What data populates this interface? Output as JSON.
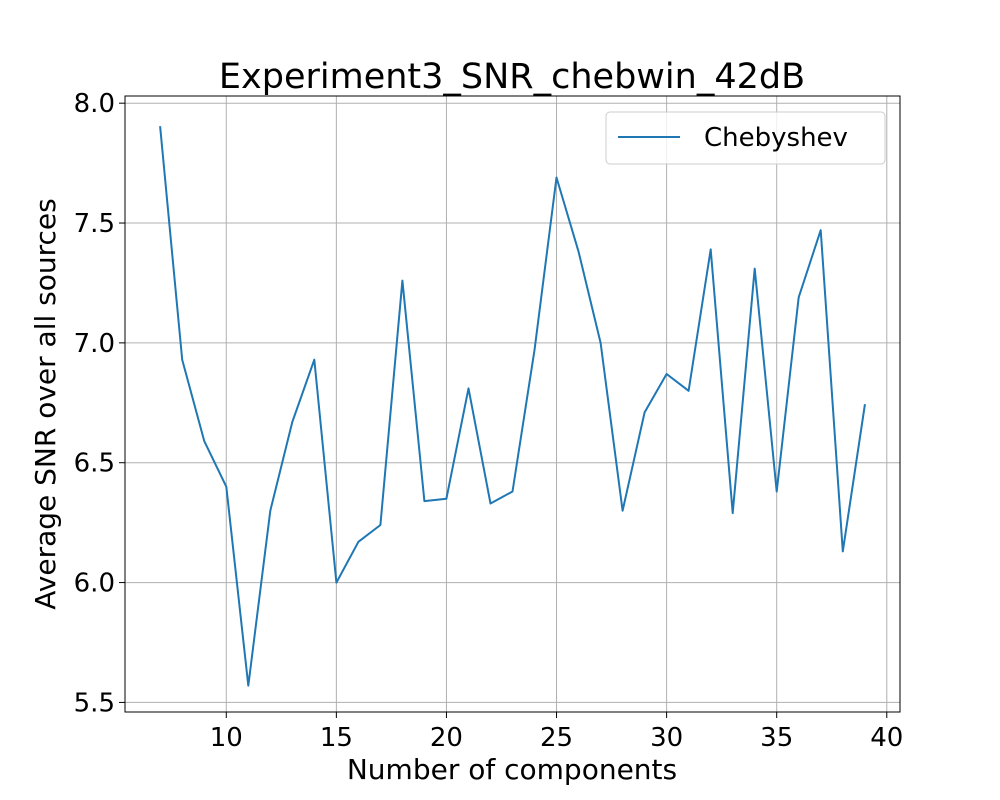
{
  "chart_data": {
    "type": "line",
    "title": "Experiment3_SNR_chebwin_42dB",
    "xlabel": "Number of components",
    "ylabel": "Average SNR over all sources",
    "xlim": [
      5.4,
      40.6
    ],
    "ylim": [
      5.46,
      8.03
    ],
    "xticks": [
      10,
      15,
      20,
      25,
      30,
      35,
      40
    ],
    "yticks": [
      5.5,
      6.0,
      6.5,
      7.0,
      7.5,
      8.0
    ],
    "xtick_labels": [
      "10",
      "15",
      "20",
      "25",
      "30",
      "35",
      "40"
    ],
    "ytick_labels": [
      "5.5",
      "6.0",
      "6.5",
      "7.0",
      "7.5",
      "8.0"
    ],
    "grid": true,
    "legend_position": "top-right",
    "series": [
      {
        "name": "Chebyshev",
        "color": "#1f77b4",
        "x": [
          7,
          8,
          9,
          10,
          11,
          12,
          13,
          14,
          15,
          16,
          17,
          18,
          19,
          20,
          21,
          22,
          23,
          24,
          25,
          26,
          27,
          28,
          29,
          30,
          31,
          32,
          33,
          34,
          35,
          36,
          37,
          38,
          39
        ],
        "y": [
          7.9,
          6.93,
          6.59,
          6.4,
          5.57,
          6.3,
          6.67,
          6.93,
          6.0,
          6.17,
          6.24,
          7.26,
          6.34,
          6.35,
          6.81,
          6.33,
          6.38,
          6.97,
          7.69,
          7.38,
          7.0,
          6.3,
          6.71,
          6.87,
          6.8,
          7.39,
          6.29,
          7.31,
          6.38,
          7.19,
          7.47,
          6.13,
          6.74
        ]
      }
    ]
  }
}
